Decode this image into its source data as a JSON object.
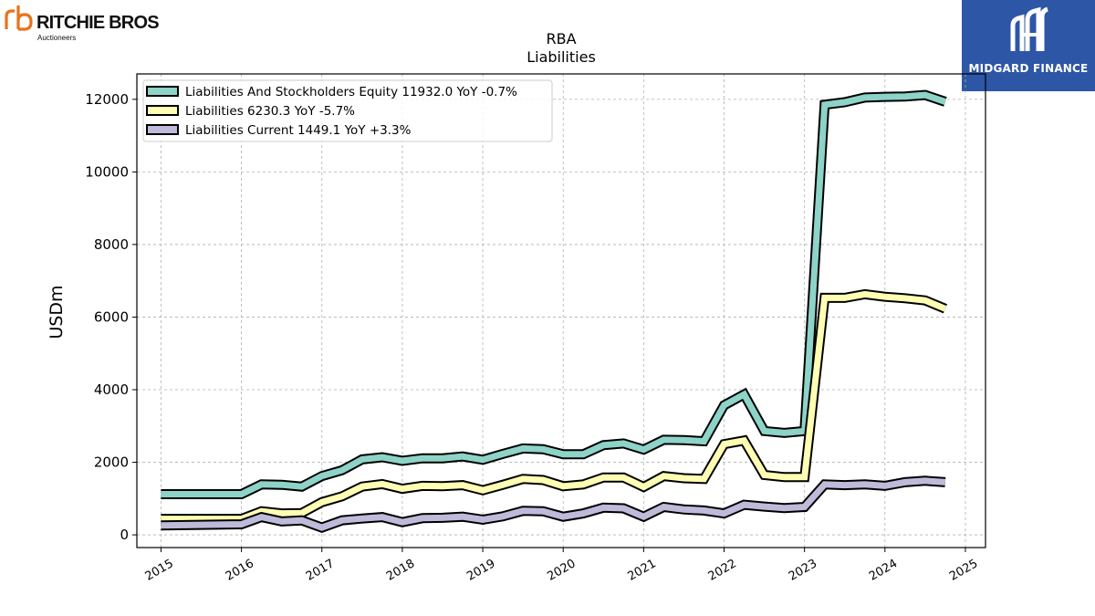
{
  "logos": {
    "left": {
      "name": "RITCHIE BROS.",
      "tagline": "Auctioneers",
      "color": "#e8731a"
    },
    "right": {
      "name": "MIDGARD FINANCE",
      "color": "#2d56a6"
    }
  },
  "chart_data": {
    "type": "line",
    "title": "RBA",
    "subtitle": "Liabilities",
    "ylabel": "USDm",
    "xlabel": "",
    "xlim": [
      2014.7,
      2025.25
    ],
    "ylim": [
      -350,
      12700
    ],
    "x_ticks": [
      "2015",
      "2016",
      "2017",
      "2018",
      "2019",
      "2020",
      "2021",
      "2022",
      "2023",
      "2024",
      "2025"
    ],
    "y_ticks": [
      "0",
      "2000",
      "4000",
      "6000",
      "8000",
      "10000",
      "12000"
    ],
    "grid": true,
    "legend_position": "top-left",
    "series": [
      {
        "name": "Liabilities And Stockholders Equity",
        "legend_label": "Liabilities And Stockholders Equity  11932.0 YoY -0.7%",
        "color": "#8dd3c7",
        "points": [
          [
            2015.0,
            1120
          ],
          [
            2016.0,
            1120
          ],
          [
            2016.25,
            1390
          ],
          [
            2016.5,
            1380
          ],
          [
            2016.75,
            1330
          ],
          [
            2017.0,
            1620
          ],
          [
            2017.25,
            1780
          ],
          [
            2017.5,
            2080
          ],
          [
            2017.75,
            2140
          ],
          [
            2018.0,
            2040
          ],
          [
            2018.25,
            2110
          ],
          [
            2018.5,
            2110
          ],
          [
            2018.75,
            2160
          ],
          [
            2019.0,
            2070
          ],
          [
            2019.25,
            2230
          ],
          [
            2019.5,
            2380
          ],
          [
            2019.75,
            2360
          ],
          [
            2020.0,
            2220
          ],
          [
            2020.25,
            2220
          ],
          [
            2020.5,
            2470
          ],
          [
            2020.75,
            2520
          ],
          [
            2021.0,
            2350
          ],
          [
            2021.25,
            2620
          ],
          [
            2021.5,
            2610
          ],
          [
            2021.75,
            2580
          ],
          [
            2022.0,
            3570
          ],
          [
            2022.25,
            3870
          ],
          [
            2022.5,
            2860
          ],
          [
            2022.75,
            2810
          ],
          [
            2023.0,
            2860
          ],
          [
            2023.25,
            11850
          ],
          [
            2023.5,
            11920
          ],
          [
            2023.75,
            12050
          ],
          [
            2024.0,
            12070
          ],
          [
            2024.25,
            12080
          ],
          [
            2024.5,
            12120
          ],
          [
            2024.75,
            11932
          ]
        ]
      },
      {
        "name": "Liabilities",
        "legend_label": "Liabilities  6230.3 YoY -5.7%",
        "color": "#ffffb3",
        "points": [
          [
            2015.0,
            440
          ],
          [
            2016.0,
            440
          ],
          [
            2016.25,
            650
          ],
          [
            2016.5,
            590
          ],
          [
            2016.75,
            600
          ],
          [
            2017.0,
            900
          ],
          [
            2017.25,
            1060
          ],
          [
            2017.5,
            1330
          ],
          [
            2017.75,
            1400
          ],
          [
            2018.0,
            1270
          ],
          [
            2018.25,
            1350
          ],
          [
            2018.5,
            1340
          ],
          [
            2018.75,
            1370
          ],
          [
            2019.0,
            1230
          ],
          [
            2019.25,
            1380
          ],
          [
            2019.5,
            1540
          ],
          [
            2019.75,
            1510
          ],
          [
            2020.0,
            1340
          ],
          [
            2020.25,
            1390
          ],
          [
            2020.5,
            1580
          ],
          [
            2020.75,
            1580
          ],
          [
            2021.0,
            1320
          ],
          [
            2021.25,
            1620
          ],
          [
            2021.5,
            1560
          ],
          [
            2021.75,
            1540
          ],
          [
            2022.0,
            2500
          ],
          [
            2022.25,
            2600
          ],
          [
            2022.5,
            1650
          ],
          [
            2022.75,
            1590
          ],
          [
            2023.0,
            1590
          ],
          [
            2023.25,
            6530
          ],
          [
            2023.5,
            6530
          ],
          [
            2023.75,
            6630
          ],
          [
            2024.0,
            6560
          ],
          [
            2024.25,
            6520
          ],
          [
            2024.5,
            6460
          ],
          [
            2024.75,
            6230.3
          ]
        ]
      },
      {
        "name": "Liabilities Current",
        "legend_label": "Liabilities Current  1449.1 YoY +3.3%",
        "color": "#bebada",
        "points": [
          [
            2015.0,
            260
          ],
          [
            2016.0,
            290
          ],
          [
            2016.25,
            490
          ],
          [
            2016.5,
            370
          ],
          [
            2016.75,
            400
          ],
          [
            2017.0,
            200
          ],
          [
            2017.25,
            400
          ],
          [
            2017.5,
            450
          ],
          [
            2017.75,
            490
          ],
          [
            2018.0,
            350
          ],
          [
            2018.25,
            460
          ],
          [
            2018.5,
            470
          ],
          [
            2018.75,
            500
          ],
          [
            2019.0,
            420
          ],
          [
            2019.25,
            510
          ],
          [
            2019.5,
            660
          ],
          [
            2019.75,
            650
          ],
          [
            2020.0,
            500
          ],
          [
            2020.25,
            590
          ],
          [
            2020.5,
            750
          ],
          [
            2020.75,
            730
          ],
          [
            2021.0,
            500
          ],
          [
            2021.25,
            770
          ],
          [
            2021.5,
            700
          ],
          [
            2021.75,
            670
          ],
          [
            2022.0,
            590
          ],
          [
            2022.25,
            830
          ],
          [
            2022.5,
            780
          ],
          [
            2022.75,
            740
          ],
          [
            2023.0,
            770
          ],
          [
            2023.25,
            1390
          ],
          [
            2023.5,
            1370
          ],
          [
            2023.75,
            1390
          ],
          [
            2024.0,
            1350
          ],
          [
            2024.25,
            1450
          ],
          [
            2024.5,
            1490
          ],
          [
            2024.75,
            1449.1
          ]
        ]
      }
    ]
  }
}
